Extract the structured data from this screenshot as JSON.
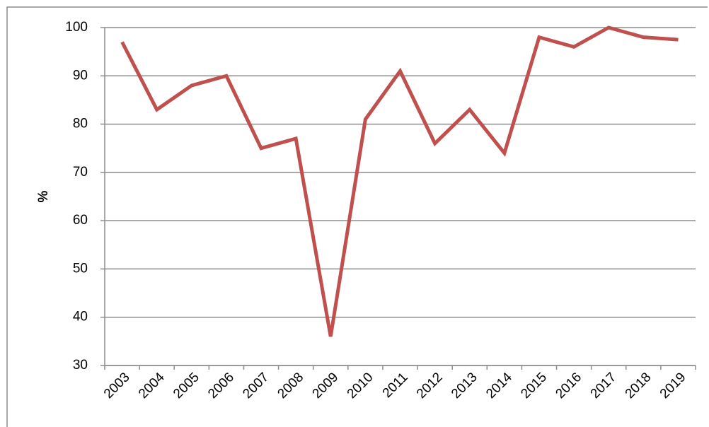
{
  "chart_data": {
    "type": "line",
    "y_label": "%",
    "categories": [
      "2003",
      "2004",
      "2005",
      "2006",
      "2007",
      "2008",
      "2009",
      "2010",
      "2011",
      "2012",
      "2013",
      "2014",
      "2015",
      "2016",
      "2017",
      "2018",
      "2019"
    ],
    "series": [
      {
        "color": "#c0504d",
        "values": [
          97,
          83,
          88,
          90,
          75,
          77,
          36,
          81,
          91,
          76,
          83,
          74,
          98,
          96,
          100,
          98,
          97.5
        ]
      }
    ],
    "ylim": [
      30,
      100
    ],
    "yticks": [
      30,
      40,
      50,
      60,
      70,
      80,
      90,
      100
    ],
    "grid": true
  }
}
